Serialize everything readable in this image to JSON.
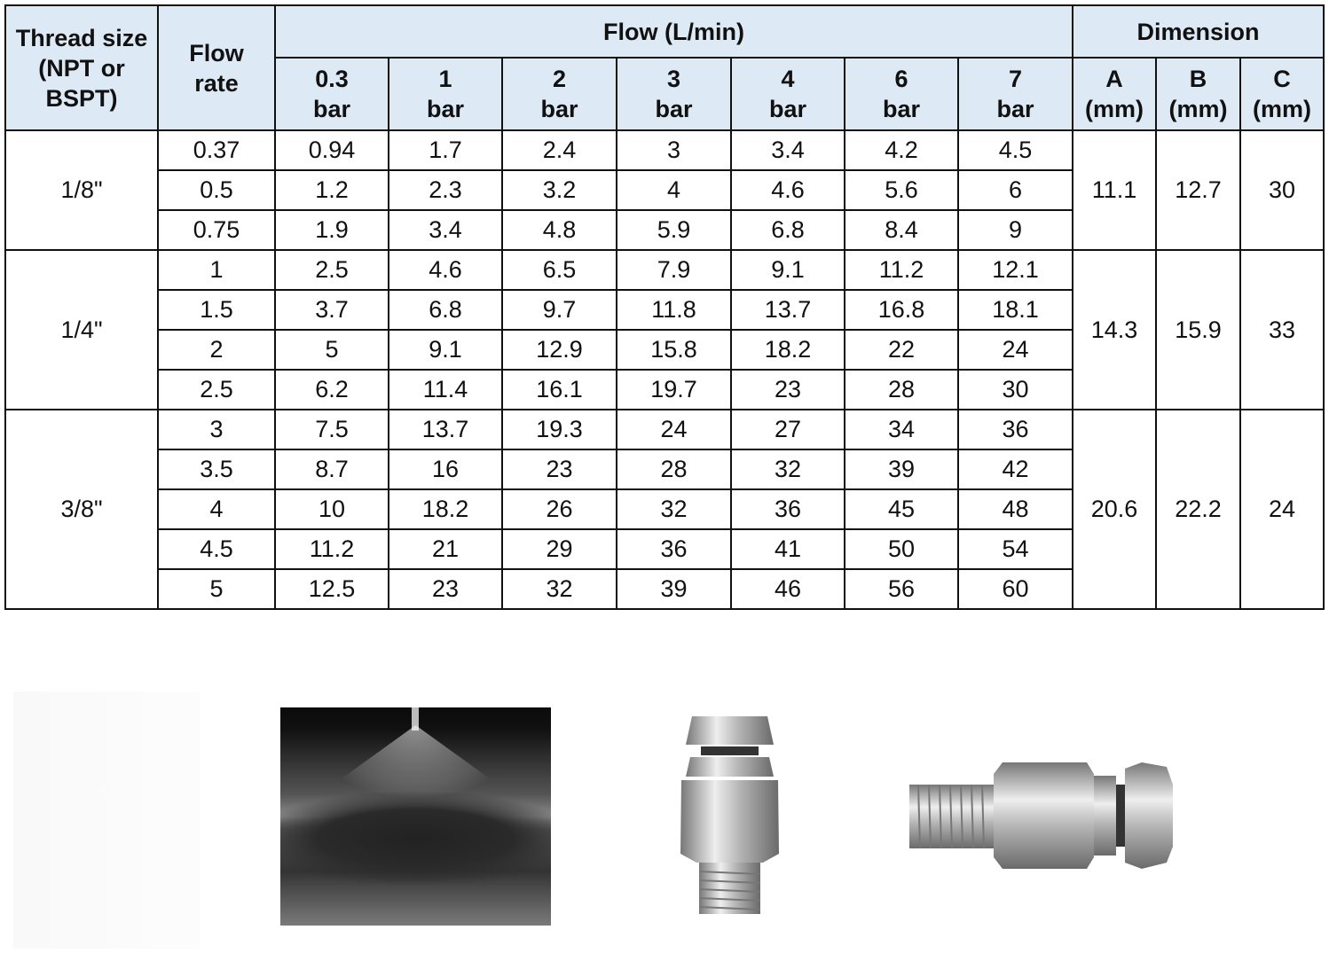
{
  "header": {
    "thread_size": "Thread size (NPT or BSPT)",
    "flow_rate": "Flow rate",
    "flow_group": "Flow (L/min)",
    "dimension_group": "Dimension",
    "pressures": [
      "0.3 bar",
      "1 bar",
      "2 bar",
      "3 bar",
      "4 bar",
      "6 bar",
      "7 bar"
    ],
    "pressure_values": [
      "0.3",
      "1",
      "2",
      "3",
      "4",
      "6",
      "7"
    ],
    "pressure_unit": "bar",
    "dims": [
      "A",
      "B",
      "C"
    ],
    "dim_unit": "(mm)"
  },
  "groups": [
    {
      "thread": "1/8\"",
      "A": "11.1",
      "B": "12.7",
      "C": "30",
      "rows": [
        [
          "0.37",
          "0.94",
          "1.7",
          "2.4",
          "3",
          "3.4",
          "4.2",
          "4.5"
        ],
        [
          "0.5",
          "1.2",
          "2.3",
          "3.2",
          "4",
          "4.6",
          "5.6",
          "6"
        ],
        [
          "0.75",
          "1.9",
          "3.4",
          "4.8",
          "5.9",
          "6.8",
          "8.4",
          "9"
        ]
      ]
    },
    {
      "thread": "1/4\"",
      "A": "14.3",
      "B": "15.9",
      "C": "33",
      "rows": [
        [
          "1",
          "2.5",
          "4.6",
          "6.5",
          "7.9",
          "9.1",
          "11.2",
          "12.1"
        ],
        [
          "1.5",
          "3.7",
          "6.8",
          "9.7",
          "11.8",
          "13.7",
          "16.8",
          "18.1"
        ],
        [
          "2",
          "5",
          "9.1",
          "12.9",
          "15.8",
          "18.2",
          "22",
          "24"
        ],
        [
          "2.5",
          "6.2",
          "11.4",
          "16.1",
          "19.7",
          "23",
          "28",
          "30"
        ]
      ]
    },
    {
      "thread": "3/8\"",
      "A": "20.6",
      "B": "22.2",
      "C": "24",
      "rows": [
        [
          "3",
          "7.5",
          "13.7",
          "19.3",
          "24",
          "27",
          "34",
          "36"
        ],
        [
          "3.5",
          "8.7",
          "16",
          "23",
          "28",
          "32",
          "39",
          "42"
        ],
        [
          "4",
          "10",
          "18.2",
          "26",
          "32",
          "36",
          "45",
          "48"
        ],
        [
          "4.5",
          "11.2",
          "21",
          "29",
          "36",
          "41",
          "50",
          "54"
        ],
        [
          "5",
          "12.5",
          "23",
          "32",
          "39",
          "46",
          "56",
          "60"
        ]
      ]
    }
  ],
  "colors": {
    "header_bg": "#dde9f5",
    "border": "#111111"
  }
}
